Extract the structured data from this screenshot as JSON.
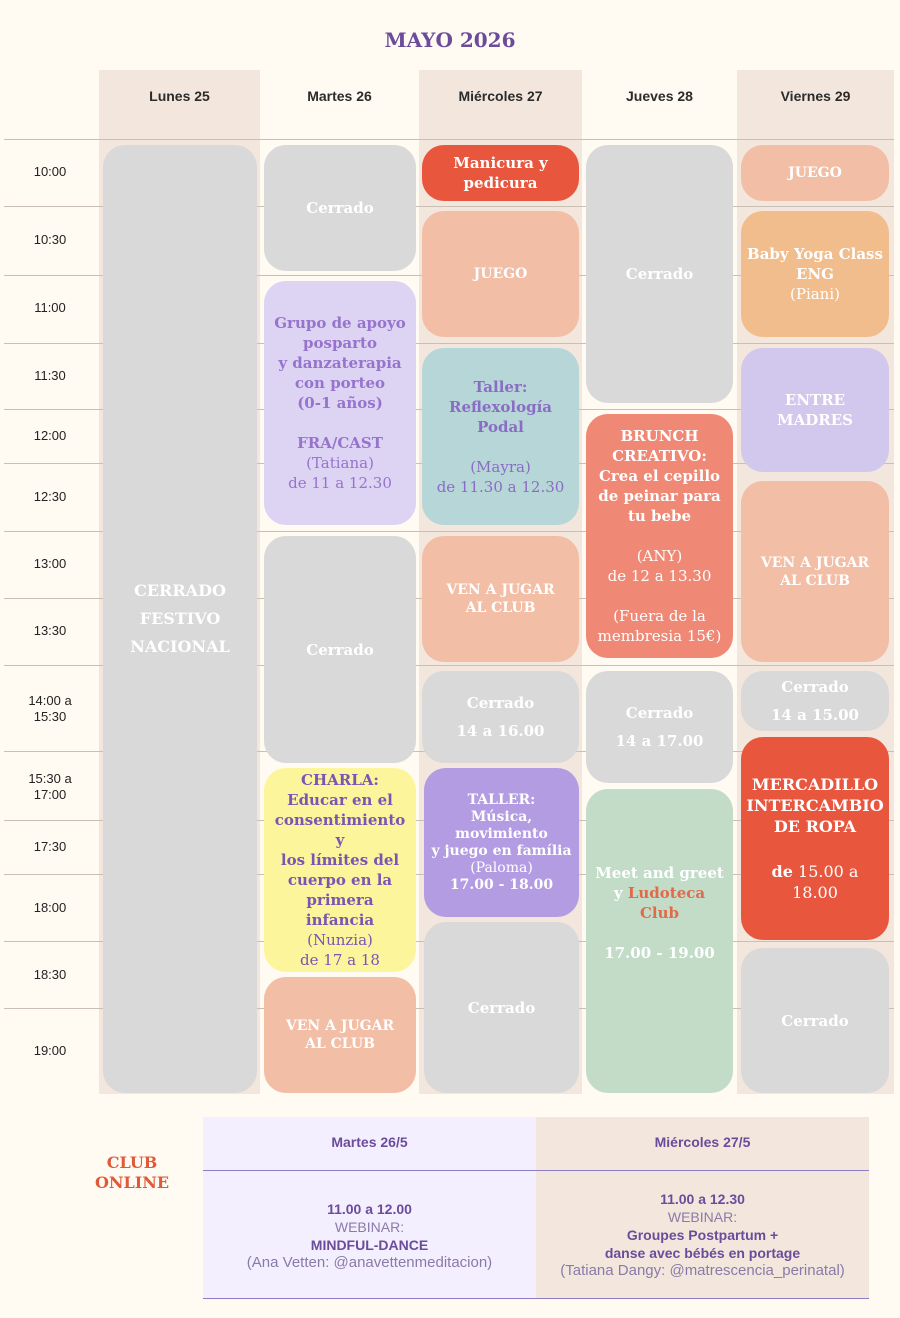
{
  "title": "MAYO 2026",
  "days": [
    "Lunes 25",
    "Martes 26",
    "Miércoles 27",
    "Jueves 28",
    "Viernes 29"
  ],
  "times": [
    "10:00",
    "10:30",
    "11:00",
    "11:30",
    "12:00",
    "12:30",
    "13:00",
    "13:30",
    "14:00 a 15:30",
    "15:30 a 17:00",
    "17:30",
    "18:00",
    "18:30",
    "19:00"
  ],
  "lunes": {
    "l1": "CERRADO",
    "l2": "FESTIVO",
    "l3": "NACIONAL"
  },
  "martes": {
    "cerrado1": "Cerrado",
    "grupo": {
      "l1": "Grupo de apoyo",
      "l2": "posparto",
      "l3": "y danzaterapia",
      "l4": "con porteo",
      "l5": "(0-1 años)",
      "l6": "FRA/CAST",
      "l7": "(Tatiana)",
      "l8": "de 11 a 12.30"
    },
    "cerrado2": "Cerrado",
    "charla": {
      "l1": "CHARLA:",
      "l2": "Educar en el",
      "l3": "consentimiento y",
      "l4": "los límites del",
      "l5": "cuerpo en la",
      "l6": "primera infancia",
      "l7": "(Nunzia)",
      "l8": "de 17 a 18"
    },
    "ven": {
      "l1": "VEN A JUGAR",
      "l2": "AL CLUB"
    }
  },
  "miercoles": {
    "manicura": {
      "l1": "Manicura y",
      "l2": "pedicura"
    },
    "juego": "JUEGO",
    "taller": {
      "l1": "Taller:",
      "l2": "Reflexología",
      "l3": "Podal",
      "l4": "(Mayra)",
      "l5": "de 11.30 a 12.30"
    },
    "ven": {
      "l1": "VEN A JUGAR",
      "l2": "AL CLUB"
    },
    "cerrado": {
      "l1": "Cerrado",
      "l2": "14 a 16.00"
    },
    "musica": {
      "l1": "TALLER:",
      "l2": "Música,",
      "l3": "movimiento",
      "l4": "y juego en família",
      "l5": "(Paloma)",
      "l6": "17.00 - 18.00"
    },
    "cerrado2": "Cerrado"
  },
  "jueves": {
    "cerrado1": "Cerrado",
    "brunch": {
      "l1": "BRUNCH",
      "l2": "CREATIVO:",
      "l3": "Crea el cepillo",
      "l4": "de peinar para",
      "l5": "tu bebe",
      "l6": "(ANY)",
      "l7": "de 12 a 13.30",
      "l8": "(Fuera de la",
      "l9": "membresia 15€)"
    },
    "cerrado2": {
      "l1": "Cerrado",
      "l2": "14 a 17.00"
    },
    "meet": {
      "l1": "Meet and greet",
      "l2a": "y ",
      "l2b": "Ludoteca Club",
      "l3": "17.00 - 19.00"
    }
  },
  "viernes": {
    "juego": "JUEGO",
    "yoga": {
      "l1": "Baby Yoga Class",
      "l2": "ENG",
      "l3": "(Piani)"
    },
    "entre": {
      "l1": "ENTRE",
      "l2": "MADRES"
    },
    "ven": {
      "l1": "VEN A JUGAR",
      "l2": "AL CLUB"
    },
    "cerrado": {
      "l1": "Cerrado",
      "l2": "14 a 15.00"
    },
    "mercadillo": {
      "l1": "MERCADILLO",
      "l2": "INTERCAMBIO",
      "l3": "DE ROPA",
      "l4a": "de",
      "l4b": " 15.00 a 18.00"
    },
    "cerrado2": "Cerrado"
  },
  "online": {
    "label1": "CLUB",
    "label2": "ONLINE",
    "col1": {
      "header": "Martes 26/5",
      "time": "11.00 a 12.00",
      "type": "WEBINAR:",
      "name": "MINDFUL-DANCE",
      "who": "(Ana Vetten: @anavettenmeditacion)"
    },
    "col2": {
      "header": "Miércoles 27/5",
      "time": "11.00 a 12.30",
      "type": "WEBINAR:",
      "name1": "Groupes Postpartum +",
      "name2": "danse avec bébés en portage",
      "who": "(Tatiana Dangy: @matrescencia_perinatal)"
    }
  },
  "colors": {
    "gray": "#d9d9d9",
    "peach": "#f3bea6",
    "red": "#e8563e",
    "lavender": "#ddd3f3",
    "teal": "#b6d6d8",
    "salmon": "#ef8875",
    "yellow": "#fdf59c",
    "purple": "#b39ce1",
    "green": "#c2dcc8",
    "title": "#6b4c9a",
    "accent": "#e05a3a"
  }
}
